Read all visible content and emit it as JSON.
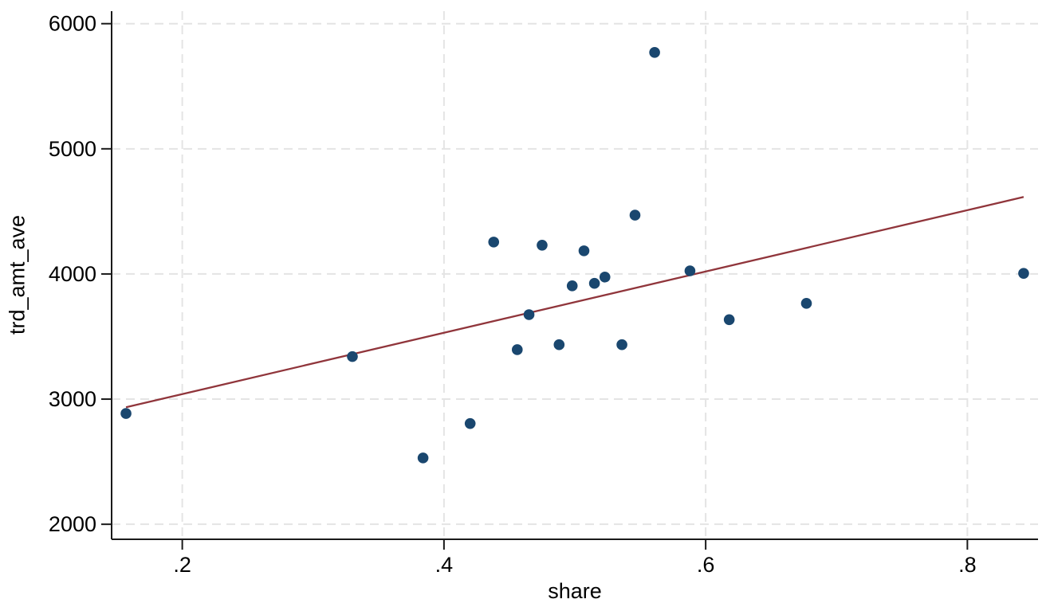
{
  "chart_data": {
    "type": "scatter",
    "title": "",
    "xlabel": "share",
    "ylabel": "trd_amt_ave",
    "grid": true,
    "legend": "none",
    "x_range": [
      0.146,
      0.854
    ],
    "y_range": [
      1880,
      6100
    ],
    "x_ticks": [
      {
        "v": 0.2,
        "label": ".2"
      },
      {
        "v": 0.4,
        "label": ".4"
      },
      {
        "v": 0.6,
        "label": ".6"
      },
      {
        "v": 0.8,
        "label": ".8"
      }
    ],
    "y_ticks": [
      {
        "v": 2000,
        "label": "2000"
      },
      {
        "v": 3000,
        "label": "3000"
      },
      {
        "v": 4000,
        "label": "4000"
      },
      {
        "v": 5000,
        "label": "5000"
      },
      {
        "v": 6000,
        "label": "6000"
      }
    ],
    "points": [
      [
        0.157,
        2885
      ],
      [
        0.33,
        3340
      ],
      [
        0.384,
        2530
      ],
      [
        0.42,
        2805
      ],
      [
        0.438,
        4255
      ],
      [
        0.456,
        3395
      ],
      [
        0.465,
        3675
      ],
      [
        0.475,
        4230
      ],
      [
        0.488,
        3435
      ],
      [
        0.498,
        3905
      ],
      [
        0.507,
        4185
      ],
      [
        0.515,
        3925
      ],
      [
        0.523,
        3975
      ],
      [
        0.536,
        3435
      ],
      [
        0.546,
        4470
      ],
      [
        0.561,
        5770
      ],
      [
        0.588,
        4025
      ],
      [
        0.618,
        3635
      ],
      [
        0.677,
        3765
      ],
      [
        0.843,
        4005
      ]
    ],
    "fit_line": {
      "x1": 0.157,
      "y1": 2935,
      "x2": 0.843,
      "y2": 4615
    },
    "colors": {
      "marker": "#1a476f",
      "fit_line": "#90353b",
      "grid": "#e4e4e4",
      "axis": "#1a1a1a",
      "text": "#000000"
    }
  }
}
